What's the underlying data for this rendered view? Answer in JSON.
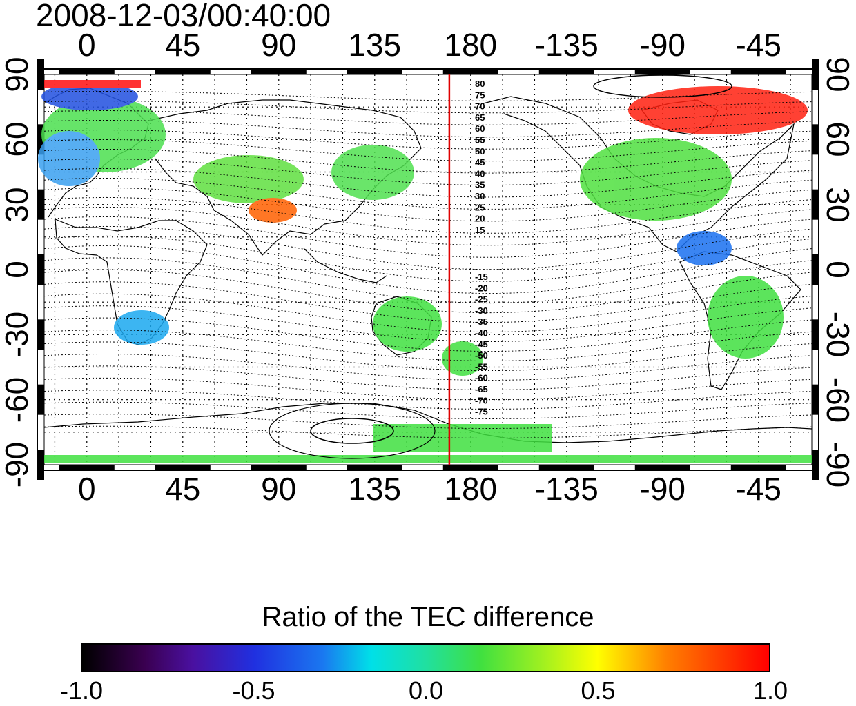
{
  "header": {
    "timestamp": "2008-12-03/00:40:00"
  },
  "map": {
    "longitude_ticks": [
      "0",
      "45",
      "90",
      "135",
      "180",
      "-135",
      "-90",
      "-45"
    ],
    "latitude_ticks": [
      "90",
      "60",
      "30",
      "0",
      "-30",
      "-60",
      "-90"
    ],
    "contour_labels_north": [
      "80",
      "75",
      "70",
      "65",
      "60",
      "55",
      "50",
      "45",
      "40",
      "35",
      "30",
      "25",
      "20",
      "15"
    ],
    "contour_labels_south": [
      "-15",
      "-20",
      "-25",
      "-30",
      "-35",
      "-40",
      "-45",
      "-50",
      "-55",
      "-60",
      "-65",
      "-70",
      "-75"
    ],
    "marker_line_color": "#e00000",
    "marker_longitude": 170
  },
  "colorbar": {
    "title": "Ratio of the TEC difference",
    "tick_labels": [
      "-1.0",
      "-0.5",
      "0.0",
      "0.5",
      "1.0"
    ],
    "range": [
      -1.0,
      1.0
    ],
    "colormap": [
      "#000000",
      "#4a10a0",
      "#2030e0",
      "#00e0e8",
      "#40e040",
      "#ffff00",
      "#ff8000",
      "#ff0000"
    ]
  }
}
